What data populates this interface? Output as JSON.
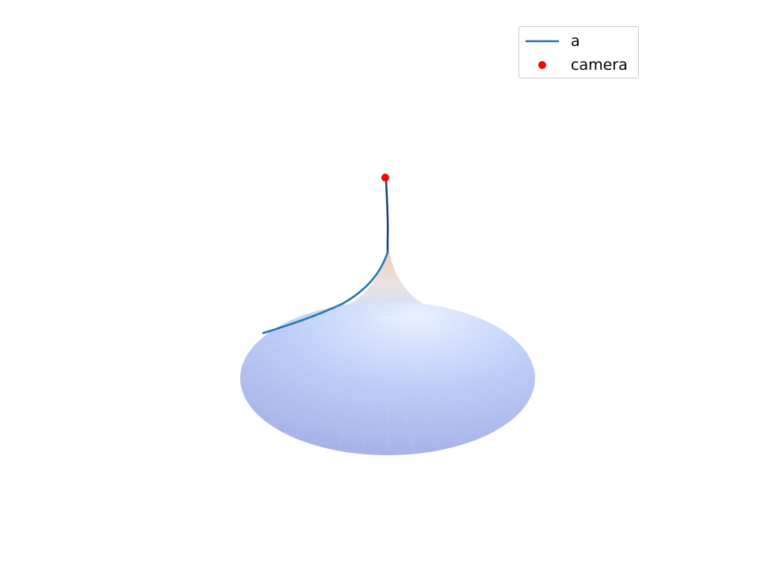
{
  "chart_data": {
    "type": "line",
    "subtype": "3d-surface-with-trajectory",
    "title": "",
    "xlabel": "",
    "ylabel": "",
    "zlabel": "",
    "axes_visible": false,
    "grid": false,
    "legend_position": "top-right",
    "surface": {
      "shape": "rotationally symmetric funnel",
      "colormap": "coolwarm",
      "alpha": 0.5
    },
    "series": [
      {
        "name": "a",
        "kind": "line",
        "color": "#1f77b4"
      },
      {
        "name": "camera",
        "kind": "scatter",
        "color": "#ff0000"
      }
    ]
  }
}
